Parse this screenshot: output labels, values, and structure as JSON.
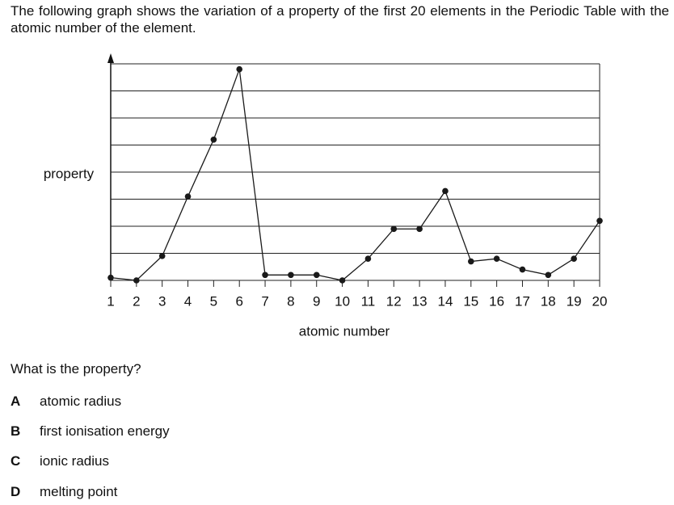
{
  "question": {
    "stem": "The following graph shows the variation of a property of the first 20 elements in the Periodic Table with the atomic number of the element.",
    "prompt": "What is the property?",
    "options": [
      {
        "letter": "A",
        "text": "atomic radius"
      },
      {
        "letter": "B",
        "text": "first ionisation energy"
      },
      {
        "letter": "C",
        "text": "ionic radius"
      },
      {
        "letter": "D",
        "text": "melting point"
      }
    ]
  },
  "chart_data": {
    "type": "line",
    "x_label": "atomic number",
    "y_label": "property",
    "x": [
      1,
      2,
      3,
      4,
      5,
      6,
      7,
      8,
      9,
      10,
      11,
      12,
      13,
      14,
      15,
      16,
      17,
      18,
      19,
      20
    ],
    "values": [
      0.1,
      0,
      0.9,
      3.1,
      5.2,
      7.8,
      0.2,
      0.2,
      0.2,
      0,
      0.8,
      1.9,
      1.9,
      3.3,
      0.7,
      0.8,
      0.4,
      0.2,
      0.8,
      2.2
    ],
    "color": "#1a1a1a",
    "xlim": [
      1,
      20
    ],
    "xticks": [
      1,
      2,
      3,
      4,
      5,
      6,
      7,
      8,
      9,
      10,
      11,
      12,
      13,
      14,
      15,
      16,
      17,
      18,
      19,
      20
    ],
    "ylim": [
      0,
      8
    ],
    "yticks": [
      0,
      1,
      2,
      3,
      4,
      5,
      6,
      7,
      8
    ],
    "grid": true
  }
}
